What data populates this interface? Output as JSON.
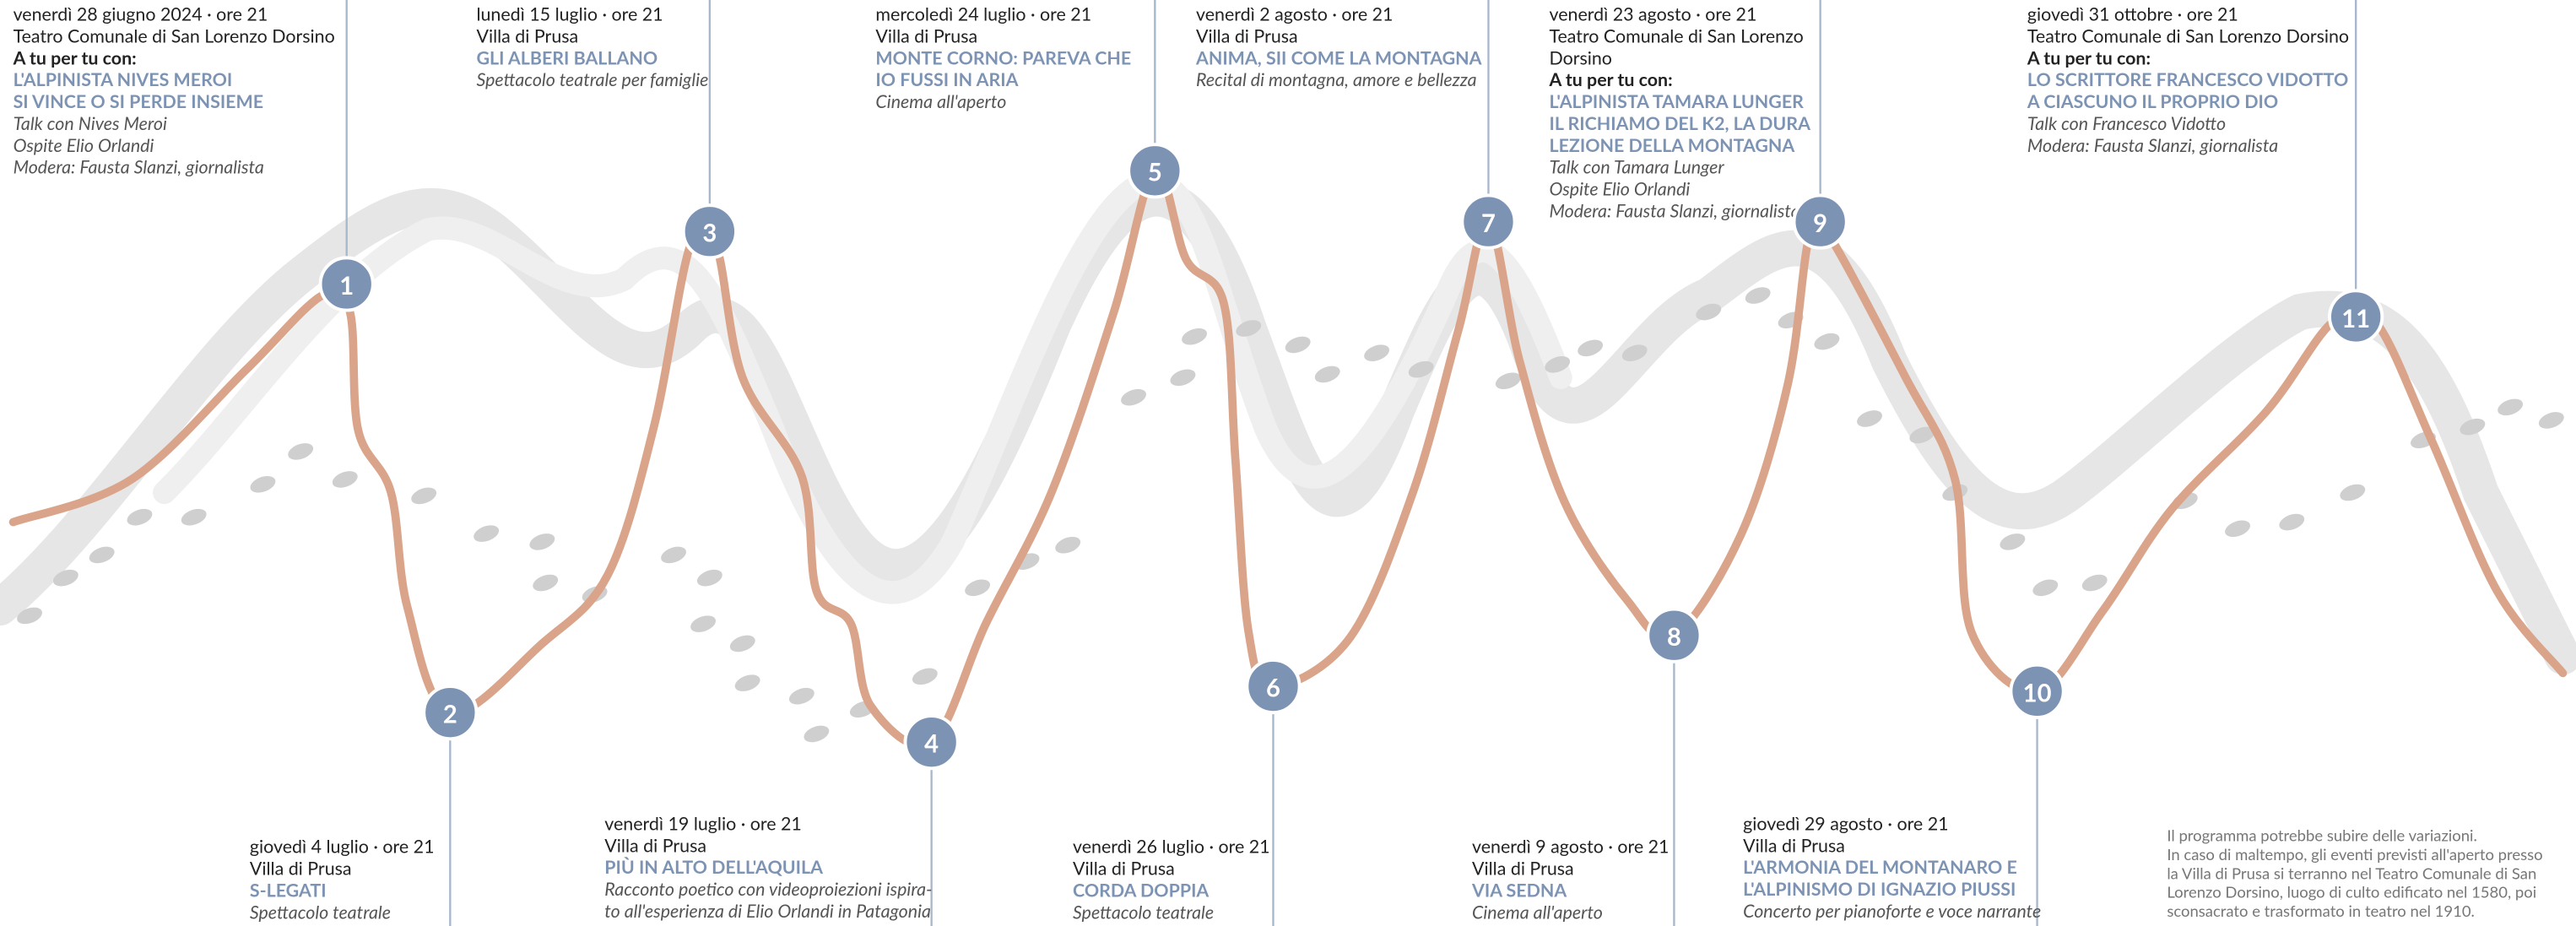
{
  "events": [
    {
      "number": 1,
      "date": "venerdì 28 giugno 2024 · ore 21",
      "place": [
        "Teatro Comunale di San Lorenzo Dorsino"
      ],
      "intro": "A tu per tu con:",
      "title": [
        "L'ALPINISTA NIVES MEROI",
        "SI VINCE O SI PERDE INSIEME"
      ],
      "details": [
        "Talk con Nives Meroi",
        "Ospite Elio Orlandi",
        "Modera: Fausta Slanzi, giornalista"
      ]
    },
    {
      "number": 2,
      "date": "giovedì 4 luglio · ore 21",
      "place": [
        "Villa di Prusa"
      ],
      "title": [
        "S-LEGATI"
      ],
      "details": [
        "Spettacolo teatrale"
      ]
    },
    {
      "number": 3,
      "date": "lunedì 15 luglio · ore 21",
      "place": [
        "Villa di Prusa"
      ],
      "title": [
        "GLI ALBERI BALLANO"
      ],
      "details": [
        "Spettacolo teatrale per famiglie"
      ]
    },
    {
      "number": 4,
      "date": "venerdì 19 luglio · ore 21",
      "place": [
        "Villa di Prusa"
      ],
      "title": [
        "PIÙ IN ALTO DELL'AQUILA"
      ],
      "details": [
        "Racconto poetico con videoproiezioni ispira-",
        "to all'esperienza di Elio Orlandi in Patagonia"
      ]
    },
    {
      "number": 5,
      "date": "mercoledì 24 luglio · ore 21",
      "place": [
        "Villa di Prusa"
      ],
      "title": [
        "MONTE CORNO: PAREVA CHE",
        "IO FUSSI IN ARIA"
      ],
      "details": [
        "Cinema all'aperto"
      ]
    },
    {
      "number": 6,
      "date": "venerdì 26 luglio · ore 21",
      "place": [
        "Villa di Prusa"
      ],
      "title": [
        "CORDA DOPPIA"
      ],
      "details": [
        "Spettacolo teatrale"
      ]
    },
    {
      "number": 7,
      "date": "venerdì 2 agosto · ore 21",
      "place": [
        "Villa di Prusa"
      ],
      "title": [
        "ANIMA, SII COME LA MONTAGNA"
      ],
      "details": [
        "Recital di montagna, amore e bellezza"
      ]
    },
    {
      "number": 8,
      "date": "venerdì 9 agosto · ore 21",
      "place": [
        "Villa di Prusa"
      ],
      "title": [
        "VIA SEDNA"
      ],
      "details": [
        "Cinema all'aperto"
      ]
    },
    {
      "number": 9,
      "date": "venerdì 23 agosto · ore 21",
      "place": [
        "Teatro Comunale di San Lorenzo",
        "Dorsino"
      ],
      "intro": "A tu per tu con:",
      "title": [
        "L'ALPINISTA TAMARA LUNGER",
        "IL RICHIAMO DEL K2, LA DURA",
        "LEZIONE DELLA MONTAGNA"
      ],
      "details": [
        "Talk con Tamara Lunger",
        "Ospite Elio Orlandi",
        "Modera: Fausta Slanzi, giornalista"
      ]
    },
    {
      "number": 10,
      "date": "giovedì 29 agosto · ore 21",
      "place": [
        "Villa di Prusa"
      ],
      "title": [
        "L'ARMONIA DEL MONTANARO E",
        "L'ALPINISMO DI IGNAZIO PIUSSI"
      ],
      "details": [
        "Concerto per pianoforte e voce narrante"
      ]
    },
    {
      "number": 11,
      "date": "giovedì 31 ottobre · ore 21",
      "place": [
        "Teatro Comunale di San Lorenzo Dorsino"
      ],
      "intro": "A tu per tu con:",
      "title": [
        "LO SCRITTORE FRANCESCO VIDOTTO",
        "A CIASCUNO IL PROPRIO DIO"
      ],
      "details": [
        "Talk con Francesco Vidotto",
        "Modera: Fausta Slanzi, giornalista"
      ]
    }
  ],
  "note": [
    "Il programma potrebbe subire delle variazioni.",
    "In caso di maltempo, gli eventi previsti all'aperto presso",
    "la Villa di Prusa si terranno nel Teatro Comunale di San",
    "Lorenzo Dorsino, luogo di culto edificato nel 1580, poi",
    "sconsacrato e trasformato in teatro nel 1910."
  ]
}
